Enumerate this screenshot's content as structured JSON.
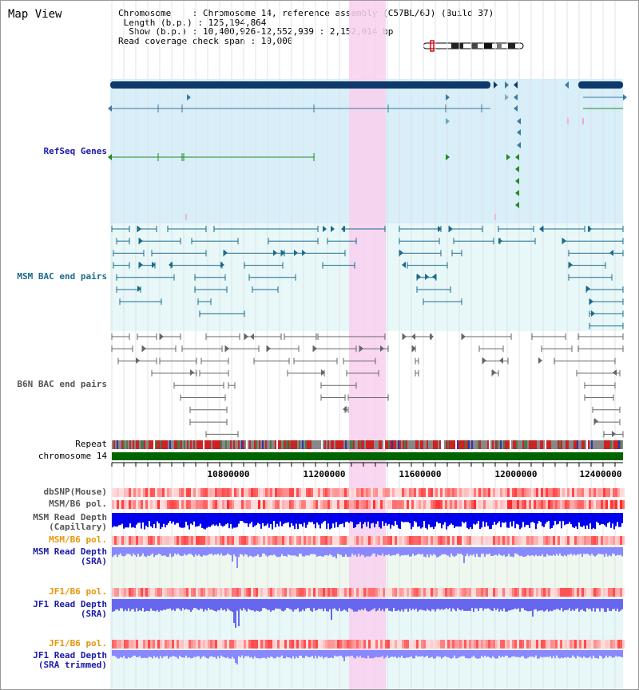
{
  "title": "Map View",
  "info_lines": [
    "Chromosome    : Chromosome 14, reference assembly (C57BL/6J) (Build 37)",
    " Length (b.p.) : 125,194,864",
    "  Show (b.p.) : 10,400,926-12,552,939 : 2,152,014 bp",
    "Read coverage check span : 10,000"
  ],
  "tracks": {
    "refseq": "RefSeq Genes",
    "msm_bac": "MSM BAC end pairs",
    "b6n_bac": "B6N BAC end pairs",
    "repeat": "Repeat",
    "chromosome": "chromosome 14",
    "dbsnp": "dbSNP(Mouse)",
    "msm_b6_pol_1": "MSM/B6 pol.",
    "msm_depth_cap_1": "MSM Read Depth",
    "msm_depth_cap_2": "(Capillary)",
    "msm_b6_pol_2": "MSM/B6 pol.",
    "msm_depth_sra_1": "MSM Read Depth",
    "msm_depth_sra_2": "(SRA)",
    "jf1_b6_pol_1": "JF1/B6 pol.",
    "jf1_depth_sra_1": "JF1 Read Depth",
    "jf1_depth_sra_2": "(SRA)",
    "jf1_b6_pol_2": "JF1/B6 pol.",
    "jf1_depth_trim_1": "JF1 Read Depth",
    "jf1_depth_trim_2": "(SRA trimmed)"
  },
  "axis_ticks": [
    "10800000",
    "11200000",
    "11600000",
    "12000000",
    "12400000"
  ],
  "colors": {
    "refseq_bg": "#d8eef8",
    "msm_bg": "#e8f7f8",
    "highlight": "#f8d0ee",
    "chromosome": "#006400",
    "gene_main": "#0d3a6b",
    "gene_line": "#3a7a9e",
    "bac_msm": "#1a6b8a",
    "bac_b6n": "#666666",
    "depth_blue": "#0000ee",
    "depth_light": "#8888ff"
  }
}
